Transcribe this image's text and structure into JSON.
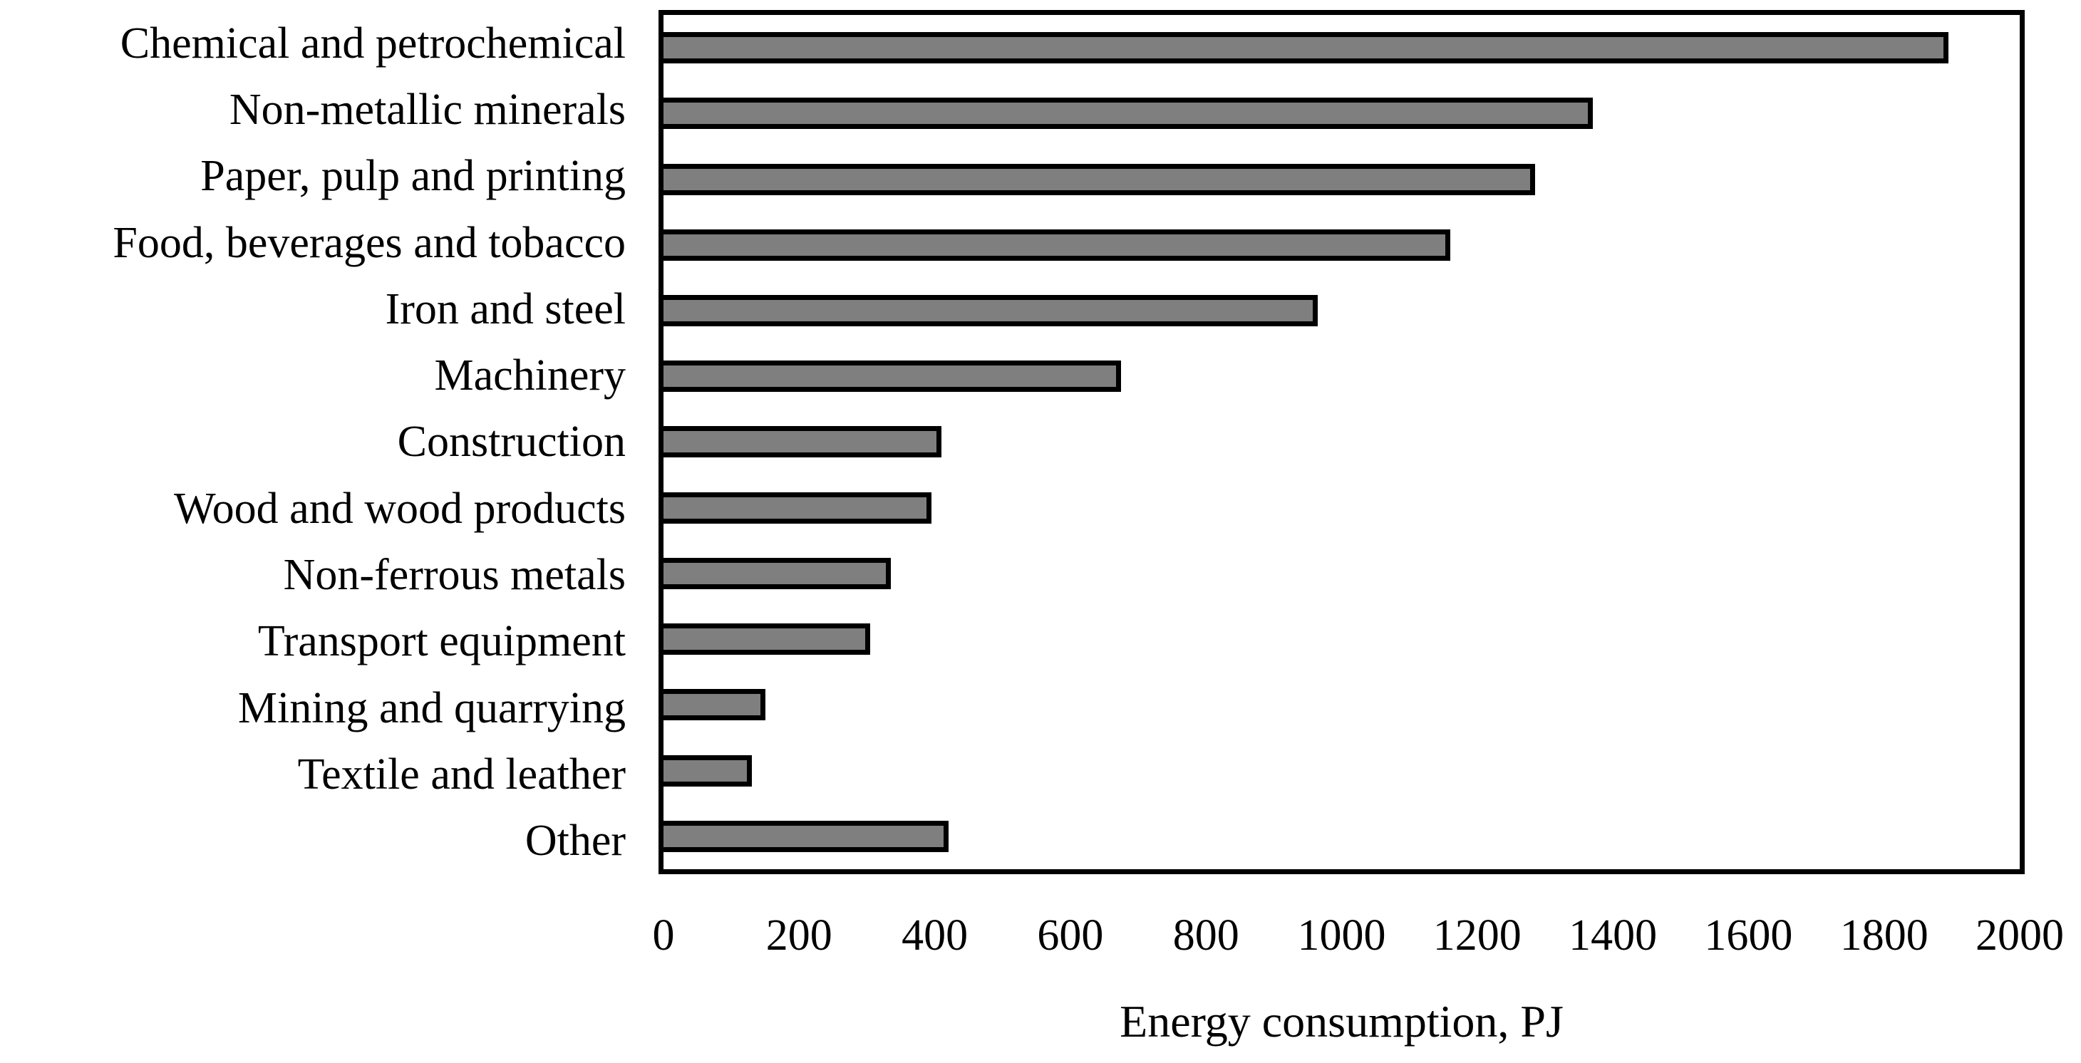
{
  "chart_data": {
    "type": "bar",
    "orientation": "horizontal",
    "title": "",
    "xlabel": "Energy consumption, PJ",
    "ylabel": "",
    "categories": [
      "Chemical and petrochemical",
      "Non-metallic minerals",
      "Paper, pulp and printing",
      "Food, beverages and tobacco",
      "Iron and steel",
      "Machinery",
      "Construction",
      "Wood and wood products",
      "Non-ferrous metals",
      "Transport equipment",
      "Mining and quarrying",
      "Textile and leather",
      "Other"
    ],
    "values": [
      1895,
      1370,
      1285,
      1160,
      965,
      675,
      410,
      395,
      335,
      305,
      150,
      130,
      420
    ],
    "xlim": [
      0,
      2000
    ],
    "xticks": [
      0,
      200,
      400,
      600,
      800,
      1000,
      1200,
      1400,
      1600,
      1800,
      2000
    ],
    "grid": false,
    "legend": false,
    "bar_color": "#7f7f7f",
    "bar_border_color": "#000000",
    "plot_border_color": "#000000",
    "background": "#ffffff",
    "units": "PJ"
  }
}
